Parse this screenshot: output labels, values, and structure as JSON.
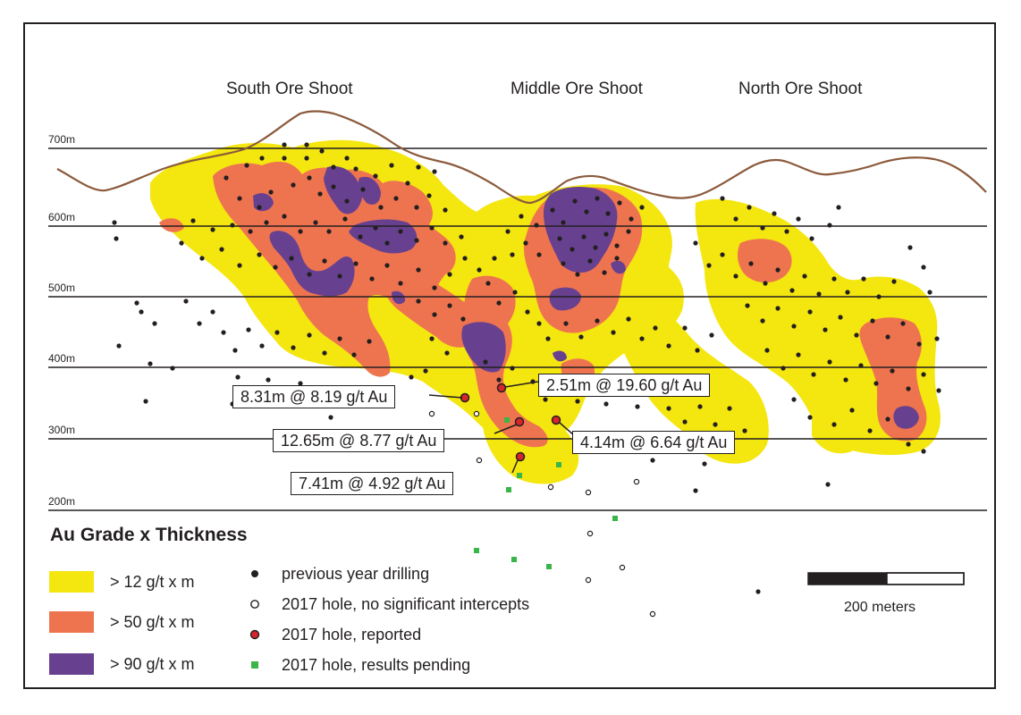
{
  "shoots": [
    "South Ore Shoot",
    "Middle Ore Shoot",
    "North Ore Shoot"
  ],
  "elevations": [
    "700m",
    "600m",
    "500m",
    "400m",
    "300m",
    "200m"
  ],
  "callouts": [
    "8.31m @ 8.19 g/t Au",
    "2.51m @ 19.60 g/t Au",
    "12.65m @ 8.77 g/t Au",
    "4.14m @ 6.64 g/t Au",
    "7.41m @ 4.92 g/t Au"
  ],
  "legend": {
    "title": "Au Grade x Thickness",
    "grades": [
      {
        "label": "> 12 g/t x m",
        "color": "#f4e60f"
      },
      {
        "label": "> 50 g/t x m",
        "color": "#ee7450"
      },
      {
        "label": "> 90 g/t x m",
        "color": "#67418f"
      }
    ],
    "symbols": [
      {
        "label": "previous year drilling",
        "icon": "filled-black-dot"
      },
      {
        "label": "2017 hole, no significant intercepts",
        "icon": "open-circle"
      },
      {
        "label": "2017 hole, reported",
        "icon": "red-dot"
      },
      {
        "label": "2017 hole, results pending",
        "icon": "green-square"
      }
    ]
  },
  "scale": {
    "label": "200 meters"
  },
  "colors": {
    "yellow": "#f4e60f",
    "orange": "#ee7450",
    "purple": "#67418f",
    "topo": "#8b5a3c",
    "reported": "#d7262b",
    "pending": "#39b54a"
  }
}
